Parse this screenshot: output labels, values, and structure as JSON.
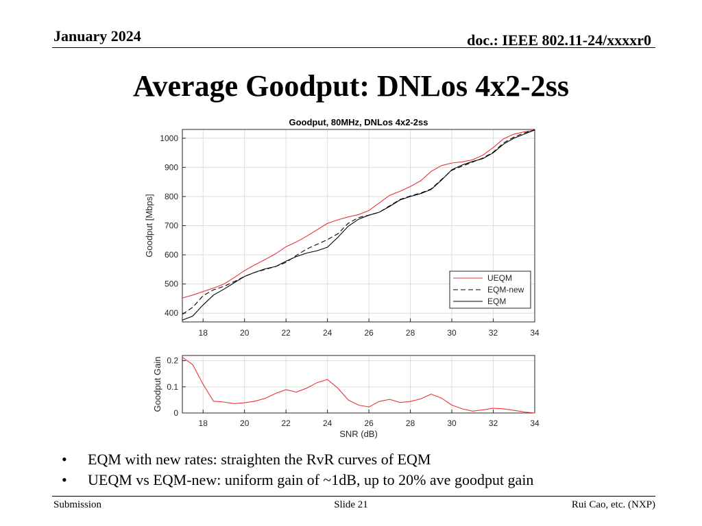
{
  "header": {
    "date": "January 2024",
    "doc": "doc.: IEEE 802.11-24/xxxxr0"
  },
  "slide": {
    "title": "Average Goodput: DNLos 4x2-2ss"
  },
  "bullets": [
    "EQM with new rates: straighten the RvR curves of EQM",
    "UEQM vs EQM-new: uniform gain of ~1dB, up to 20% ave goodput gain"
  ],
  "footer": {
    "left": "Submission",
    "center": "Slide 21",
    "right": "Rui Cao, etc. (NXP)"
  },
  "colors": {
    "ueqm": "#e8343a",
    "eqm_new": "#000000",
    "eqm": "#000000",
    "grid": "#dcdcdc"
  },
  "chart_data": [
    {
      "type": "line",
      "title": "Goodput, 80MHz, DNLos 4x2-2ss",
      "xlabel": "",
      "ylabel": "Goodput [Mbps]",
      "xlim": [
        17,
        34
      ],
      "ylim": [
        370,
        1030
      ],
      "xticks": [
        18,
        20,
        22,
        24,
        26,
        28,
        30,
        32,
        34
      ],
      "yticks": [
        400,
        500,
        600,
        700,
        800,
        900,
        1000
      ],
      "grid": true,
      "legend": "bottom-right",
      "x": [
        17,
        17.5,
        18,
        18.5,
        19,
        19.5,
        20,
        20.5,
        21,
        21.5,
        22,
        22.5,
        23,
        23.5,
        24,
        24.5,
        25,
        25.5,
        26,
        26.5,
        27,
        27.5,
        28,
        28.5,
        29,
        29.5,
        30,
        30.5,
        31,
        31.5,
        32,
        32.5,
        33,
        33.5,
        34
      ],
      "series": [
        {
          "name": "UEQM",
          "style": "solid",
          "values": [
            452,
            462,
            474,
            486,
            500,
            522,
            546,
            566,
            584,
            604,
            628,
            644,
            664,
            686,
            708,
            720,
            730,
            738,
            752,
            778,
            804,
            818,
            834,
            854,
            886,
            906,
            915,
            919,
            926,
            942,
            968,
            998,
            1014,
            1022,
            1028
          ]
        },
        {
          "name": "EQM-new",
          "style": "dashed",
          "values": [
            396,
            420,
            460,
            480,
            492,
            508,
            526,
            540,
            550,
            560,
            574,
            598,
            620,
            636,
            652,
            672,
            708,
            728,
            736,
            746,
            768,
            790,
            802,
            812,
            826,
            858,
            890,
            904,
            918,
            932,
            952,
            984,
            1004,
            1018,
            1028
          ]
        },
        {
          "name": "EQM",
          "style": "solid",
          "values": [
            376,
            390,
            428,
            462,
            482,
            504,
            526,
            540,
            552,
            560,
            578,
            594,
            606,
            614,
            626,
            660,
            698,
            722,
            736,
            746,
            766,
            788,
            800,
            810,
            824,
            856,
            892,
            908,
            920,
            930,
            950,
            980,
            1000,
            1014,
            1028
          ]
        }
      ]
    },
    {
      "type": "line",
      "title": "",
      "xlabel": "SNR (dB)",
      "ylabel": "Goodput Gain",
      "xlim": [
        17,
        34
      ],
      "ylim": [
        0,
        0.22
      ],
      "xticks": [
        18,
        20,
        22,
        24,
        26,
        28,
        30,
        32,
        34
      ],
      "yticks": [
        0,
        0.1,
        0.2
      ],
      "ytick_labels": [
        "0",
        "0.1",
        "0.2"
      ],
      "grid": true,
      "x": [
        17,
        17.5,
        18,
        18.5,
        19,
        19.5,
        20,
        20.5,
        21,
        21.5,
        22,
        22.5,
        23,
        23.5,
        24,
        24.5,
        25,
        25.5,
        26,
        26.5,
        27,
        27.5,
        28,
        28.5,
        29,
        29.5,
        30,
        30.5,
        31,
        31.5,
        32,
        32.5,
        33,
        33.5,
        34
      ],
      "series": [
        {
          "name": "",
          "style": "solid",
          "values": [
            0.213,
            0.185,
            0.11,
            0.045,
            0.042,
            0.036,
            0.039,
            0.045,
            0.056,
            0.075,
            0.089,
            0.08,
            0.095,
            0.116,
            0.128,
            0.095,
            0.05,
            0.03,
            0.023,
            0.044,
            0.052,
            0.04,
            0.044,
            0.054,
            0.072,
            0.057,
            0.03,
            0.016,
            0.007,
            0.012,
            0.018,
            0.016,
            0.01,
            0.004,
            0.0
          ]
        }
      ]
    }
  ]
}
